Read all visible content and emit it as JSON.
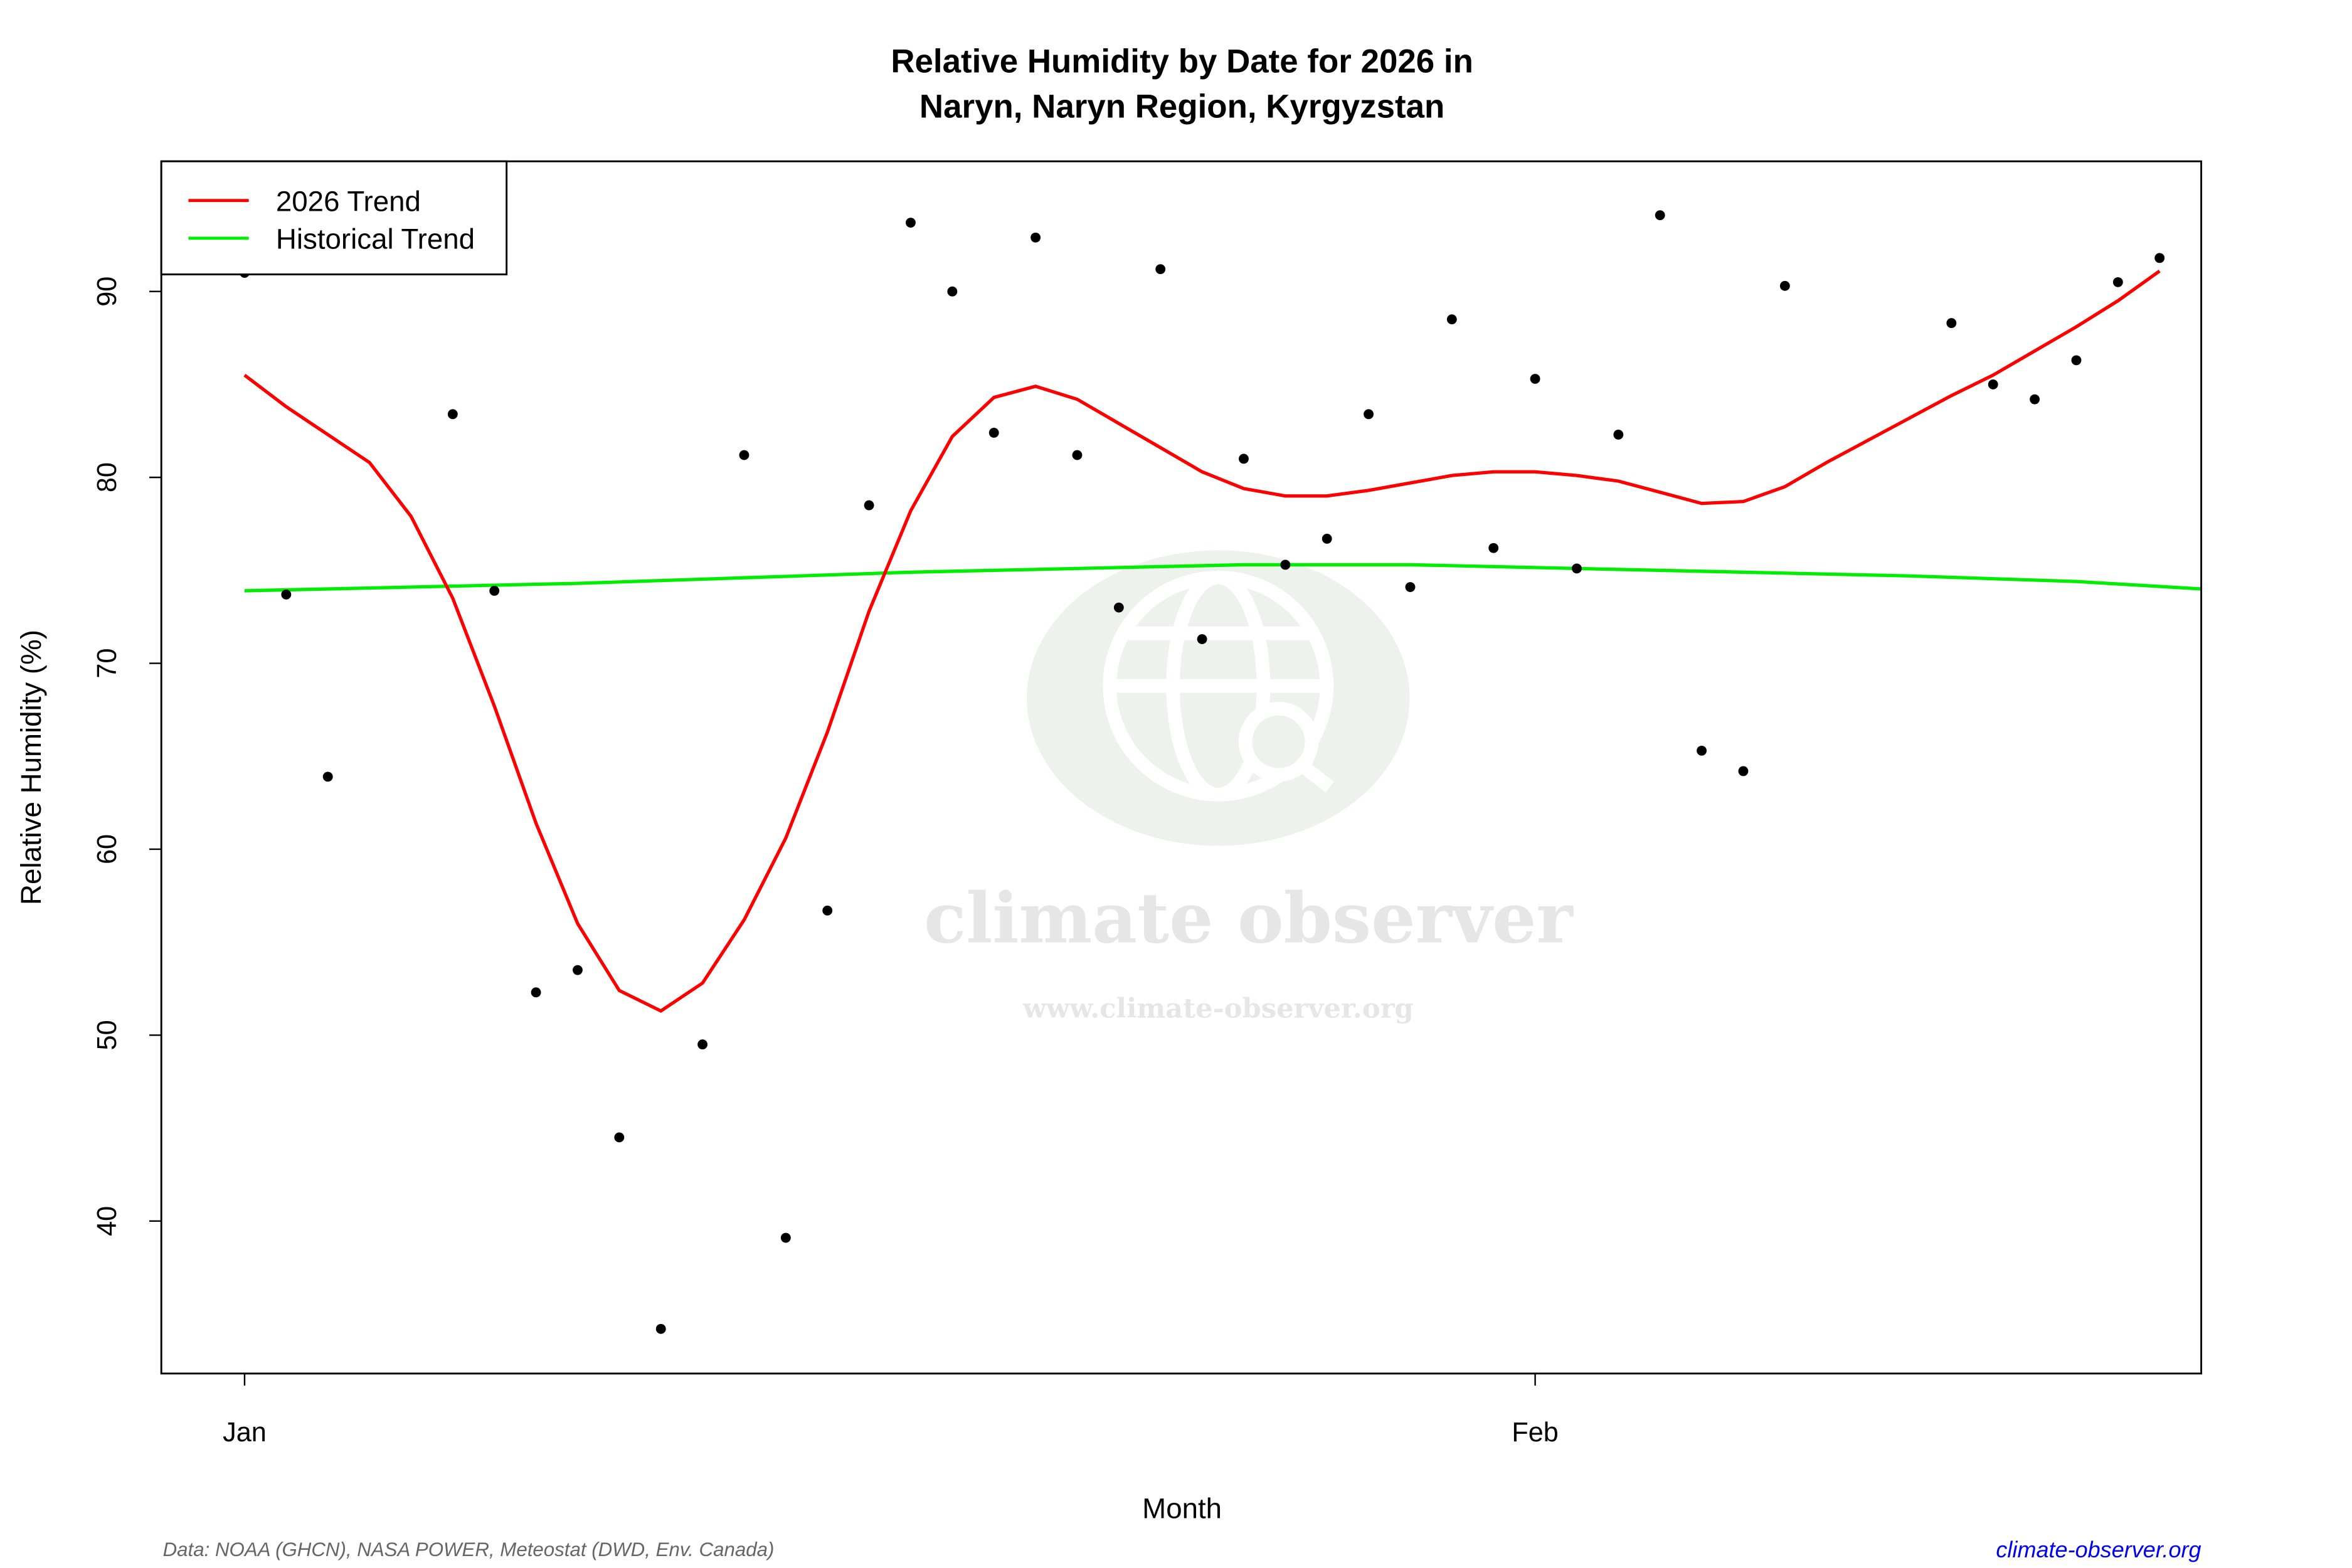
{
  "chart_data": {
    "type": "scatter",
    "title_line1": "Relative Humidity by Date for 2026 in",
    "title_line2": "Naryn, Naryn Region, Kyrgyzstan",
    "xlabel": "Month",
    "ylabel": "Relative Humidity (%)",
    "x_ticks": [
      {
        "label": "Jan",
        "date": "2026-01-01"
      },
      {
        "label": "Feb",
        "date": "2026-02-01"
      }
    ],
    "y_ticks": [
      40,
      50,
      60,
      70,
      80,
      90
    ],
    "xlim": [
      "2025-12-30",
      "2026-02-17"
    ],
    "ylim": [
      31.8,
      97.0
    ],
    "grid": false,
    "legend_position": "top-left",
    "legend": [
      {
        "label": "2026 Trend",
        "color": "#ff0000"
      },
      {
        "label": "Historical Trend",
        "color": "#00ee00"
      }
    ],
    "observations": {
      "color": "#000000",
      "points": [
        [
          "2026-01-01",
          91.0
        ],
        [
          "2026-01-02",
          73.7
        ],
        [
          "2026-01-03",
          63.9
        ],
        [
          "2026-01-06",
          83.4
        ],
        [
          "2026-01-07",
          73.9
        ],
        [
          "2026-01-08",
          52.3
        ],
        [
          "2026-01-09",
          53.5
        ],
        [
          "2026-01-10",
          44.5
        ],
        [
          "2026-01-11",
          34.2
        ],
        [
          "2026-01-12",
          49.5
        ],
        [
          "2026-01-13",
          81.2
        ],
        [
          "2026-01-14",
          39.1
        ],
        [
          "2026-01-15",
          56.7
        ],
        [
          "2026-01-16",
          78.5
        ],
        [
          "2026-01-17",
          93.7
        ],
        [
          "2026-01-18",
          90.0
        ],
        [
          "2026-01-19",
          82.4
        ],
        [
          "2026-01-20",
          92.9
        ],
        [
          "2026-01-21",
          81.2
        ],
        [
          "2026-01-22",
          73.0
        ],
        [
          "2026-01-23",
          91.2
        ],
        [
          "2026-01-24",
          71.3
        ],
        [
          "2026-01-25",
          81.0
        ],
        [
          "2026-01-26",
          75.3
        ],
        [
          "2026-01-27",
          76.7
        ],
        [
          "2026-01-28",
          83.4
        ],
        [
          "2026-01-29",
          74.1
        ],
        [
          "2026-01-30",
          88.5
        ],
        [
          "2026-01-31",
          76.2
        ],
        [
          "2026-02-01",
          85.3
        ],
        [
          "2026-02-02",
          75.1
        ],
        [
          "2026-02-03",
          82.3
        ],
        [
          "2026-02-04",
          94.1
        ],
        [
          "2026-02-05",
          65.3
        ],
        [
          "2026-02-06",
          64.2
        ],
        [
          "2026-02-07",
          90.3
        ],
        [
          "2026-02-11",
          88.3
        ],
        [
          "2026-02-12",
          85.0
        ],
        [
          "2026-02-13",
          84.2
        ],
        [
          "2026-02-14",
          86.3
        ],
        [
          "2026-02-15",
          90.5
        ],
        [
          "2026-02-16",
          91.8
        ]
      ]
    },
    "series": [
      {
        "name": "2026 Trend",
        "color": "#ff0000",
        "points": [
          [
            "2026-01-01",
            85.5
          ],
          [
            "2026-01-02",
            83.8
          ],
          [
            "2026-01-03",
            82.3
          ],
          [
            "2026-01-04",
            80.8
          ],
          [
            "2026-01-05",
            77.9
          ],
          [
            "2026-01-06",
            73.5
          ],
          [
            "2026-01-07",
            67.7
          ],
          [
            "2026-01-08",
            61.4
          ],
          [
            "2026-01-09",
            56.0
          ],
          [
            "2026-01-10",
            52.4
          ],
          [
            "2026-01-11",
            51.3
          ],
          [
            "2026-01-12",
            52.8
          ],
          [
            "2026-01-13",
            56.2
          ],
          [
            "2026-01-14",
            60.6
          ],
          [
            "2026-01-15",
            66.3
          ],
          [
            "2026-01-16",
            72.8
          ],
          [
            "2026-01-17",
            78.2
          ],
          [
            "2026-01-18",
            82.2
          ],
          [
            "2026-01-19",
            84.3
          ],
          [
            "2026-01-20",
            84.9
          ],
          [
            "2026-01-21",
            84.2
          ],
          [
            "2026-01-22",
            82.9
          ],
          [
            "2026-01-23",
            81.6
          ],
          [
            "2026-01-24",
            80.3
          ],
          [
            "2026-01-25",
            79.4
          ],
          [
            "2026-01-26",
            79.0
          ],
          [
            "2026-01-27",
            79.0
          ],
          [
            "2026-01-28",
            79.3
          ],
          [
            "2026-01-29",
            79.7
          ],
          [
            "2026-01-30",
            80.1
          ],
          [
            "2026-01-31",
            80.3
          ],
          [
            "2026-02-01",
            80.3
          ],
          [
            "2026-02-02",
            80.1
          ],
          [
            "2026-02-03",
            79.8
          ],
          [
            "2026-02-04",
            79.2
          ],
          [
            "2026-02-05",
            78.6
          ],
          [
            "2026-02-06",
            78.7
          ],
          [
            "2026-02-07",
            79.5
          ],
          [
            "2026-02-08",
            80.8
          ],
          [
            "2026-02-09",
            82.0
          ],
          [
            "2026-02-10",
            83.2
          ],
          [
            "2026-02-11",
            84.4
          ],
          [
            "2026-02-12",
            85.5
          ],
          [
            "2026-02-13",
            86.8
          ],
          [
            "2026-02-14",
            88.1
          ],
          [
            "2026-02-15",
            89.5
          ],
          [
            "2026-02-16",
            91.1
          ]
        ]
      },
      {
        "name": "Historical Trend",
        "color": "#00ee00",
        "points": [
          [
            "2026-01-01",
            73.9
          ],
          [
            "2026-01-05",
            74.1
          ],
          [
            "2026-01-09",
            74.3
          ],
          [
            "2026-01-13",
            74.6
          ],
          [
            "2026-01-17",
            74.9
          ],
          [
            "2026-01-21",
            75.1
          ],
          [
            "2026-01-25",
            75.3
          ],
          [
            "2026-01-29",
            75.3
          ],
          [
            "2026-02-02",
            75.1
          ],
          [
            "2026-02-06",
            74.9
          ],
          [
            "2026-02-10",
            74.7
          ],
          [
            "2026-02-14",
            74.4
          ],
          [
            "2026-02-17",
            74.0
          ]
        ]
      }
    ]
  },
  "watermark": {
    "name": "climate observer",
    "url": "www.climate-observer.org"
  },
  "footer": {
    "source": "Data: NOAA (GHCN), NASA POWER, Meteostat (DWD, Env. Canada)",
    "link": "climate-observer.org"
  }
}
